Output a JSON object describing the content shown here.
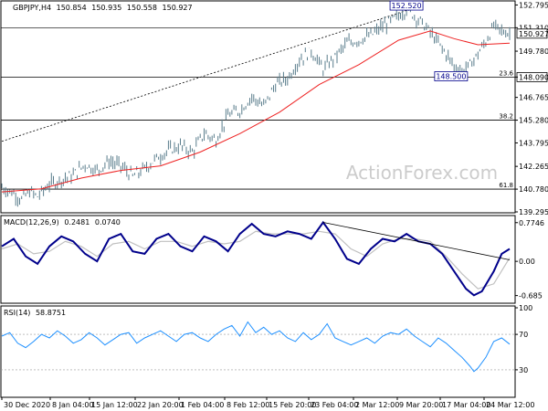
{
  "chart_data": [
    {
      "panel": "price",
      "type": "ohlc",
      "header": {
        "symbol_label": "GBPJPY,H4",
        "open": "150.854",
        "high": "150.935",
        "low": "150.558",
        "close": "150.927"
      },
      "ylim": [
        139.295,
        153.0
      ],
      "yticks": [
        "152.795",
        "151.310",
        "149.780",
        "148.090",
        "146.765",
        "145.280",
        "143.795",
        "142.265",
        "140.780",
        "139.295"
      ],
      "current_price": "150.927",
      "fib_levels": [
        {
          "label": "23.6",
          "value": 148.09
        },
        {
          "label": "38.2",
          "value": 145.28
        },
        {
          "label": "61.8",
          "value": 140.78
        }
      ],
      "annotations": [
        {
          "label": "152.520",
          "value": 152.52
        },
        {
          "label": "148.500",
          "value": 148.5
        }
      ],
      "price_path": [
        [
          0,
          140.9
        ],
        [
          3,
          140.5
        ],
        [
          5,
          140.1
        ],
        [
          7,
          140.6
        ],
        [
          9,
          140.3
        ],
        [
          12,
          141.1
        ],
        [
          15,
          141.4
        ],
        [
          18,
          141.7
        ],
        [
          21,
          142.4
        ],
        [
          24,
          142.0
        ],
        [
          27,
          142.6
        ],
        [
          30,
          142.3
        ],
        [
          33,
          141.6
        ],
        [
          36,
          142.1
        ],
        [
          39,
          142.8
        ],
        [
          42,
          143.3
        ],
        [
          45,
          143.6
        ],
        [
          48,
          143.2
        ],
        [
          51,
          144.4
        ],
        [
          54,
          144.0
        ],
        [
          57,
          145.6
        ],
        [
          60,
          145.9
        ],
        [
          63,
          146.8
        ],
        [
          66,
          146.2
        ],
        [
          69,
          147.6
        ],
        [
          72,
          148.0
        ],
        [
          75,
          149.2
        ],
        [
          78,
          149.8
        ],
        [
          81,
          148.6
        ],
        [
          84,
          149.4
        ],
        [
          87,
          150.3
        ],
        [
          90,
          150.5
        ],
        [
          93,
          150.8
        ],
        [
          96,
          151.4
        ],
        [
          99,
          151.9
        ],
        [
          102,
          152.5
        ],
        [
          104,
          152.1
        ],
        [
          106,
          151.6
        ],
        [
          108,
          151.0
        ],
        [
          110,
          150.3
        ],
        [
          112,
          149.6
        ],
        [
          114,
          148.8
        ],
        [
          116,
          148.5
        ],
        [
          118,
          148.9
        ],
        [
          120,
          149.6
        ],
        [
          122,
          150.4
        ],
        [
          124,
          151.4
        ],
        [
          126,
          151.1
        ],
        [
          128,
          150.93
        ]
      ],
      "ma_path": [
        [
          0,
          140.6
        ],
        [
          10,
          140.8
        ],
        [
          20,
          141.5
        ],
        [
          30,
          142.0
        ],
        [
          40,
          142.3
        ],
        [
          50,
          143.2
        ],
        [
          60,
          144.4
        ],
        [
          70,
          145.8
        ],
        [
          80,
          147.6
        ],
        [
          90,
          148.9
        ],
        [
          100,
          150.5
        ],
        [
          108,
          151.1
        ],
        [
          114,
          150.6
        ],
        [
          120,
          150.2
        ],
        [
          128,
          150.3
        ]
      ],
      "trendline": [
        [
          0,
          143.9
        ],
        [
          104,
          152.6
        ]
      ]
    },
    {
      "panel": "macd",
      "type": "line",
      "header": {
        "label": "MACD(12,26,9)",
        "macd": "0.2481",
        "signal": "0.0740"
      },
      "ylim": [
        -0.82,
        0.88
      ],
      "yticks": [
        "0.7746",
        "0.00",
        "-0.685"
      ],
      "macd_path": [
        [
          0,
          0.3
        ],
        [
          3,
          0.45
        ],
        [
          6,
          0.1
        ],
        [
          9,
          -0.05
        ],
        [
          12,
          0.3
        ],
        [
          15,
          0.5
        ],
        [
          18,
          0.4
        ],
        [
          21,
          0.15
        ],
        [
          24,
          0.0
        ],
        [
          27,
          0.45
        ],
        [
          30,
          0.55
        ],
        [
          33,
          0.2
        ],
        [
          36,
          0.15
        ],
        [
          39,
          0.45
        ],
        [
          42,
          0.55
        ],
        [
          45,
          0.3
        ],
        [
          48,
          0.2
        ],
        [
          51,
          0.5
        ],
        [
          54,
          0.4
        ],
        [
          57,
          0.2
        ],
        [
          60,
          0.55
        ],
        [
          63,
          0.75
        ],
        [
          66,
          0.55
        ],
        [
          69,
          0.5
        ],
        [
          72,
          0.6
        ],
        [
          75,
          0.55
        ],
        [
          78,
          0.45
        ],
        [
          81,
          0.78
        ],
        [
          84,
          0.45
        ],
        [
          87,
          0.05
        ],
        [
          90,
          -0.05
        ],
        [
          93,
          0.25
        ],
        [
          96,
          0.45
        ],
        [
          99,
          0.4
        ],
        [
          102,
          0.55
        ],
        [
          105,
          0.4
        ],
        [
          108,
          0.35
        ],
        [
          111,
          0.15
        ],
        [
          114,
          -0.2
        ],
        [
          117,
          -0.55
        ],
        [
          119,
          -0.68
        ],
        [
          121,
          -0.6
        ],
        [
          124,
          -0.2
        ],
        [
          126,
          0.15
        ],
        [
          128,
          0.25
        ]
      ],
      "signal_path": [
        [
          0,
          0.25
        ],
        [
          4,
          0.35
        ],
        [
          8,
          0.15
        ],
        [
          12,
          0.2
        ],
        [
          16,
          0.4
        ],
        [
          20,
          0.3
        ],
        [
          24,
          0.1
        ],
        [
          28,
          0.35
        ],
        [
          32,
          0.4
        ],
        [
          36,
          0.25
        ],
        [
          40,
          0.4
        ],
        [
          44,
          0.4
        ],
        [
          48,
          0.3
        ],
        [
          52,
          0.4
        ],
        [
          56,
          0.35
        ],
        [
          60,
          0.4
        ],
        [
          64,
          0.6
        ],
        [
          68,
          0.55
        ],
        [
          72,
          0.55
        ],
        [
          76,
          0.55
        ],
        [
          80,
          0.6
        ],
        [
          84,
          0.55
        ],
        [
          88,
          0.25
        ],
        [
          92,
          0.1
        ],
        [
          96,
          0.35
        ],
        [
          100,
          0.45
        ],
        [
          104,
          0.45
        ],
        [
          108,
          0.4
        ],
        [
          112,
          0.1
        ],
        [
          116,
          -0.25
        ],
        [
          120,
          -0.55
        ],
        [
          124,
          -0.45
        ],
        [
          128,
          0.07
        ]
      ],
      "trendline": [
        [
          81,
          0.78
        ],
        [
          128,
          0.25
        ]
      ]
    },
    {
      "panel": "rsi",
      "type": "line",
      "header": {
        "label": "RSI(14)",
        "value": "58.8751"
      },
      "ylim": [
        0,
        100
      ],
      "yticks": [
        "100",
        "70",
        "30",
        "0"
      ],
      "rsi_path": [
        [
          0,
          68
        ],
        [
          2,
          72
        ],
        [
          4,
          60
        ],
        [
          6,
          55
        ],
        [
          8,
          62
        ],
        [
          10,
          70
        ],
        [
          12,
          66
        ],
        [
          14,
          74
        ],
        [
          16,
          68
        ],
        [
          18,
          60
        ],
        [
          20,
          64
        ],
        [
          22,
          72
        ],
        [
          24,
          66
        ],
        [
          26,
          58
        ],
        [
          28,
          64
        ],
        [
          30,
          70
        ],
        [
          32,
          72
        ],
        [
          34,
          60
        ],
        [
          36,
          66
        ],
        [
          38,
          70
        ],
        [
          40,
          74
        ],
        [
          42,
          68
        ],
        [
          44,
          62
        ],
        [
          46,
          70
        ],
        [
          48,
          72
        ],
        [
          50,
          66
        ],
        [
          52,
          62
        ],
        [
          54,
          70
        ],
        [
          56,
          76
        ],
        [
          58,
          80
        ],
        [
          60,
          68
        ],
        [
          62,
          84
        ],
        [
          64,
          72
        ],
        [
          66,
          78
        ],
        [
          68,
          70
        ],
        [
          70,
          74
        ],
        [
          72,
          66
        ],
        [
          74,
          62
        ],
        [
          76,
          72
        ],
        [
          78,
          64
        ],
        [
          80,
          70
        ],
        [
          82,
          82
        ],
        [
          84,
          66
        ],
        [
          86,
          62
        ],
        [
          88,
          58
        ],
        [
          90,
          62
        ],
        [
          92,
          66
        ],
        [
          94,
          60
        ],
        [
          96,
          68
        ],
        [
          98,
          72
        ],
        [
          100,
          70
        ],
        [
          102,
          76
        ],
        [
          104,
          68
        ],
        [
          106,
          62
        ],
        [
          108,
          56
        ],
        [
          110,
          66
        ],
        [
          112,
          60
        ],
        [
          114,
          52
        ],
        [
          116,
          44
        ],
        [
          118,
          34
        ],
        [
          119,
          28
        ],
        [
          120,
          32
        ],
        [
          122,
          44
        ],
        [
          124,
          62
        ],
        [
          126,
          66
        ],
        [
          128,
          59
        ]
      ]
    }
  ],
  "x_axis": {
    "labels": [
      "30 Dec 2020",
      "8 Jan 04:00",
      "15 Jan 12:00",
      "22 Jan 20:00",
      "1 Feb 04:00",
      "8 Feb 12:00",
      "15 Feb 20:00",
      "23 Feb 04:00",
      "2 Mar 12:00",
      "9 Mar 20:00",
      "17 Mar 04:00",
      "24 Mar 12:00"
    ]
  },
  "watermark": "ActionForex.com",
  "colors": {
    "price": "#5a7d8c",
    "ma": "#ee2222",
    "macd": "#00008b",
    "macd_signal": "#c0c0c0",
    "rsi": "#1e90ff",
    "trendline": "#000000",
    "fib": "#000000",
    "watermark": "#c8c8c8"
  }
}
